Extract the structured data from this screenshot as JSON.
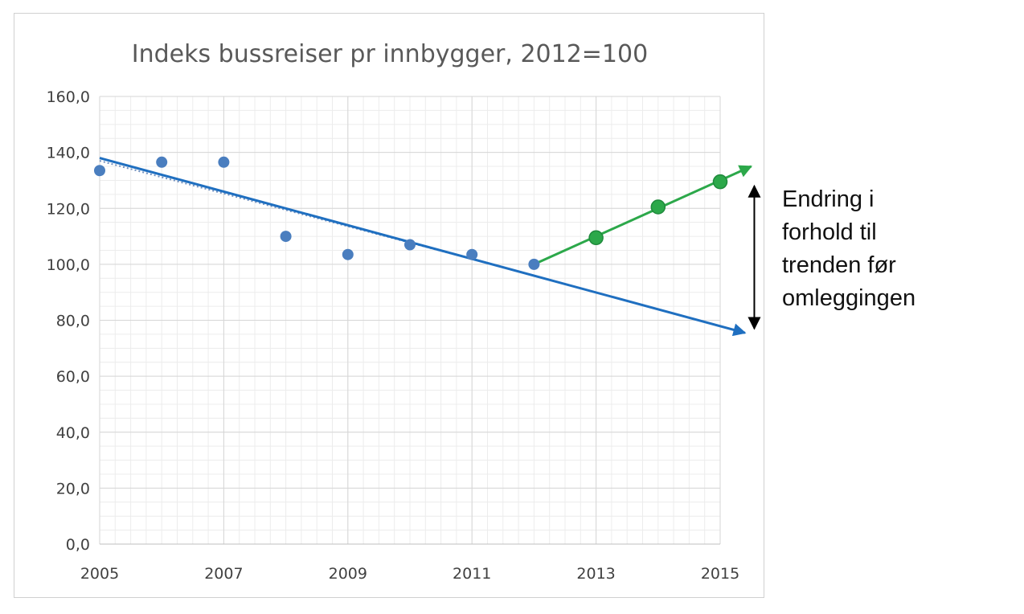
{
  "chart_data": {
    "type": "scatter",
    "title": "Indeks bussreiser pr innbygger, 2012=100",
    "xlabel": "",
    "ylabel": "",
    "xlim": [
      2005,
      2015
    ],
    "ylim": [
      0,
      160
    ],
    "x_ticks": [
      2005,
      2007,
      2009,
      2011,
      2013,
      2015
    ],
    "x_tick_labels": [
      "2005",
      "2007",
      "2009",
      "2011",
      "2013",
      "2015"
    ],
    "y_ticks": [
      0,
      20,
      40,
      60,
      80,
      100,
      120,
      140,
      160
    ],
    "y_tick_labels": [
      "0,0",
      "20,0",
      "40,0",
      "60,0",
      "80,0",
      "100,0",
      "120,0",
      "140,0",
      "160,0"
    ],
    "grid": "major and minor",
    "legend": "none",
    "series": [
      {
        "color": "#4a7ebf",
        "x": [
          2005,
          2006,
          2007,
          2008,
          2009,
          2010,
          2011,
          2012
        ],
        "y": [
          133.5,
          136.5,
          136.5,
          110,
          103.5,
          107,
          103.5,
          100
        ]
      },
      {
        "color": "#2ca84a",
        "x": [
          2013,
          2014,
          2015
        ],
        "y": [
          109.5,
          120.5,
          129.5
        ]
      }
    ],
    "annotations": {
      "blue_trend_arrow": {
        "color": "#1f6fc0",
        "from": [
          2005,
          138
        ],
        "to": [
          2015.4,
          75.5
        ]
      },
      "dotted_trend": {
        "color": "#6f8fbf",
        "from": [
          2005,
          137
        ],
        "to": [
          2012,
          96
        ]
      },
      "green_trend_arrow": {
        "color": "#2ca84a",
        "from": [
          2012,
          100
        ],
        "to": [
          2015.5,
          135
        ]
      },
      "difference_arrow": {
        "color": "#000000",
        "x": 2015.55,
        "from_y": 128,
        "to_y": 77
      }
    }
  },
  "side_note": {
    "lines": [
      "Endring i",
      "forhold til",
      "trenden før",
      "omleggingen"
    ]
  }
}
